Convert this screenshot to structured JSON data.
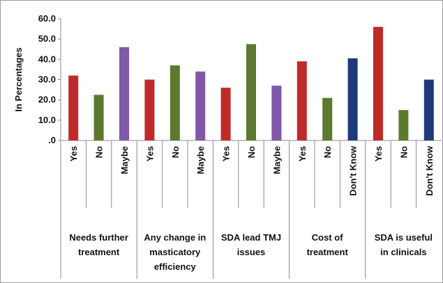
{
  "chart_data": {
    "type": "bar",
    "title": "",
    "xlabel": "",
    "ylabel": "In Percentages",
    "ylim": [
      0,
      60
    ],
    "yticks": [
      ".0",
      "10.0",
      "20.0",
      "30.0",
      "40.0",
      "50.0",
      "60.0"
    ],
    "grid": false,
    "legend": "none",
    "groups": [
      {
        "label": [
          "Needs further",
          "treatment"
        ],
        "bars": [
          {
            "category": "Yes",
            "value": 32.0,
            "color": "#c0292a"
          },
          {
            "category": "No",
            "value": 22.5,
            "color": "#5b7a2e"
          },
          {
            "category": "Maybe",
            "value": 46.0,
            "color": "#7f58a8"
          }
        ]
      },
      {
        "label": [
          "Any change in",
          "masticatory",
          "efficiency"
        ],
        "bars": [
          {
            "category": "Yes",
            "value": 30.0,
            "color": "#c0292a"
          },
          {
            "category": "No",
            "value": 37.0,
            "color": "#5b7a2e"
          },
          {
            "category": "Maybe",
            "value": 34.0,
            "color": "#7f58a8"
          }
        ]
      },
      {
        "label": [
          "SDA lead TMJ",
          "issues"
        ],
        "bars": [
          {
            "category": "Yes",
            "value": 26.0,
            "color": "#c0292a"
          },
          {
            "category": "No",
            "value": 47.5,
            "color": "#5b7a2e"
          },
          {
            "category": "Maybe",
            "value": 27.0,
            "color": "#7f58a8"
          }
        ]
      },
      {
        "label": [
          "Cost of",
          "treatment"
        ],
        "bars": [
          {
            "category": "Yes",
            "value": 39.0,
            "color": "#c0292a"
          },
          {
            "category": "No",
            "value": 21.0,
            "color": "#5b7a2e"
          },
          {
            "category": "Don't Know",
            "value": 40.5,
            "color": "#1f3a7a"
          }
        ]
      },
      {
        "label": [
          "SDA is useful",
          "in clinicals"
        ],
        "bars": [
          {
            "category": "Yes",
            "value": 56.0,
            "color": "#c0292a"
          },
          {
            "category": "No",
            "value": 15.0,
            "color": "#5b7a2e"
          },
          {
            "category": "Don't Know",
            "value": 30.0,
            "color": "#1f3a7a"
          }
        ]
      }
    ]
  }
}
